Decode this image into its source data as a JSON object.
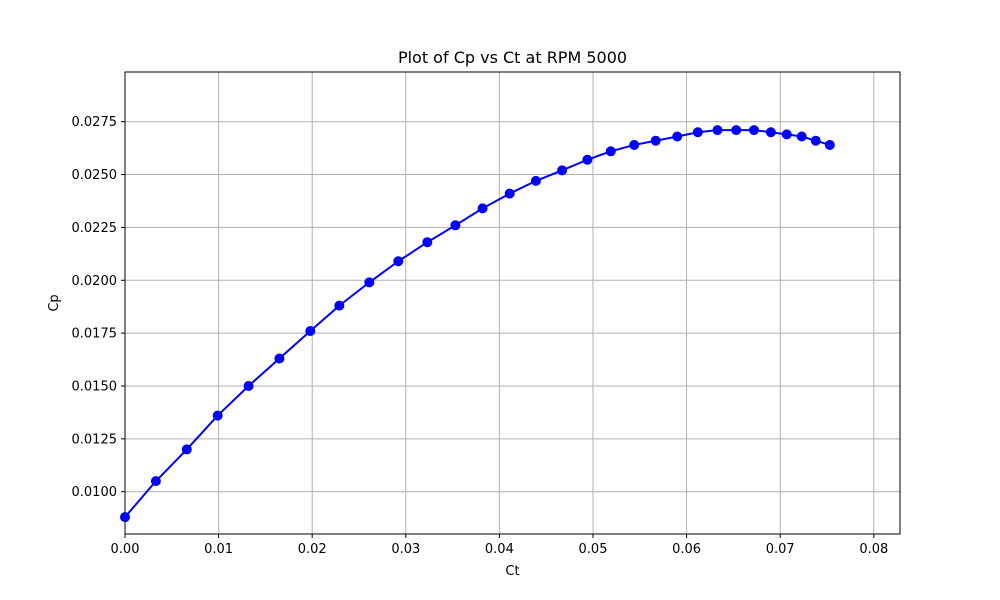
{
  "chart_data": {
    "type": "line",
    "title": "Plot of Cp vs Ct at RPM 5000",
    "xlabel": "Ct",
    "ylabel": "Cp",
    "xlim": [
      0.0,
      0.0828
    ],
    "ylim": [
      0.008,
      0.02985
    ],
    "grid": true,
    "x_ticks": [
      0.0,
      0.01,
      0.02,
      0.03,
      0.04,
      0.05,
      0.06,
      0.07,
      0.08
    ],
    "x_tick_labels": [
      "0.00",
      "0.01",
      "0.02",
      "0.03",
      "0.04",
      "0.05",
      "0.06",
      "0.07",
      "0.08"
    ],
    "y_ticks": [
      0.01,
      0.0125,
      0.015,
      0.0175,
      0.02,
      0.0225,
      0.025,
      0.0275
    ],
    "y_tick_labels": [
      "0.0100",
      "0.0125",
      "0.0150",
      "0.0175",
      "0.0200",
      "0.0225",
      "0.0250",
      "0.0275"
    ],
    "series": [
      {
        "name": "Cp vs Ct",
        "color": "#0000ff",
        "marker": "circle",
        "x": [
          0.0,
          0.0033,
          0.0066,
          0.0099,
          0.0132,
          0.0165,
          0.0198,
          0.0229,
          0.0261,
          0.0292,
          0.0323,
          0.0353,
          0.0382,
          0.0411,
          0.0439,
          0.0467,
          0.0494,
          0.0519,
          0.0544,
          0.0567,
          0.059,
          0.0612,
          0.0633,
          0.0653,
          0.0672,
          0.069,
          0.0707,
          0.0723,
          0.0738,
          0.0753
        ],
        "y": [
          0.0088,
          0.0105,
          0.012,
          0.0136,
          0.015,
          0.0163,
          0.0176,
          0.0188,
          0.0199,
          0.0209,
          0.0218,
          0.0226,
          0.0234,
          0.0241,
          0.0247,
          0.0252,
          0.0257,
          0.0261,
          0.0264,
          0.0266,
          0.0268,
          0.027,
          0.0271,
          0.0271,
          0.0271,
          0.027,
          0.0269,
          0.0268,
          0.0266,
          0.0264
        ]
      }
    ]
  }
}
